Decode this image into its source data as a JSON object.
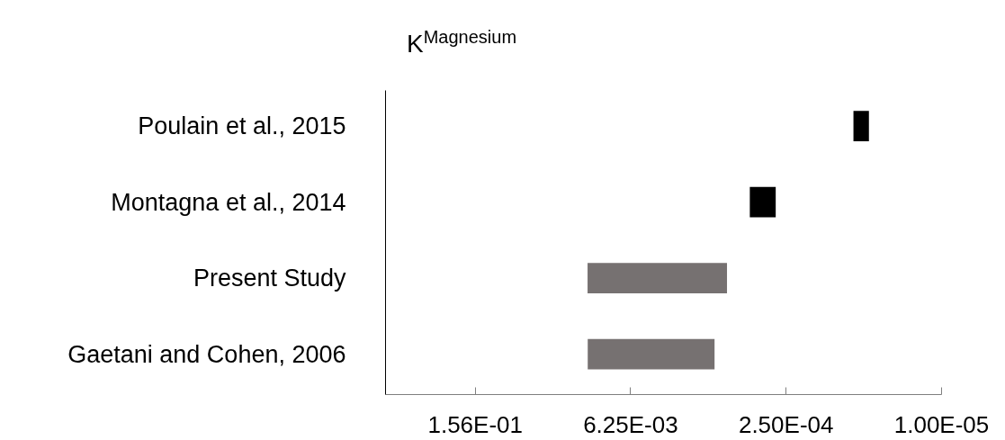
{
  "chart_data": {
    "type": "bar",
    "orientation": "horizontal",
    "title": "K$^{Magnesium}$",
    "log": "x",
    "categories": [
      "Poulain et al., 2015",
      "Montagna et al., 2014",
      "Present Study",
      "Gaetani and Cohen, 2006"
    ],
    "base": [
      4.5e-05,
      0.00031,
      0.00085,
      0.0011
    ],
    "values": [
      1.7e-05,
      0.00022,
      0.0144,
      0.0141
    ],
    "colors": [
      "#000000",
      "#000000",
      "#767171",
      "#767171"
    ],
    "xlim": [
      1,
      1e-05
    ],
    "xticks": [
      {
        "value": 0.156,
        "label": "1.56E-01"
      },
      {
        "value": 0.00625,
        "label": "6.25E-03"
      },
      {
        "value": 0.00025,
        "label": "2.50E-04"
      },
      {
        "value": 1e-05,
        "label": "1.00E-05"
      }
    ],
    "grid": false
  }
}
